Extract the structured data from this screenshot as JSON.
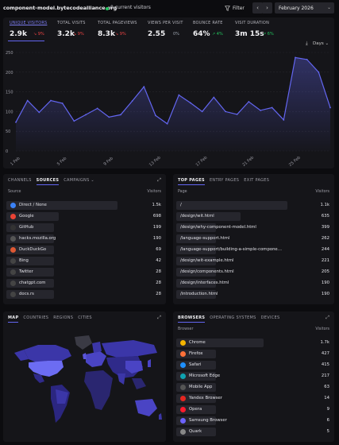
{
  "topbar": {
    "site": "component-model.bytecodealliance.org",
    "current_visitors": "0 current visitors",
    "filter_label": "Filter",
    "prev_label": "‹",
    "next_label": "›",
    "date_range": "February 2026"
  },
  "stats": [
    {
      "label": "UNIQUE VISITORS",
      "value": "2.9k",
      "delta": "9%",
      "dir": "down"
    },
    {
      "label": "TOTAL VISITS",
      "value": "3.2k",
      "delta": "9%",
      "dir": "down"
    },
    {
      "label": "TOTAL PAGEVIEWS",
      "value": "8.3k",
      "delta": "9%",
      "dir": "down"
    },
    {
      "label": "VIEWS PER VISIT",
      "value": "2.55",
      "delta": "0%",
      "dir": "flat"
    },
    {
      "label": "BOUNCE RATE",
      "value": "64%",
      "delta": "4%",
      "dir": "up"
    },
    {
      "label": "VISIT DURATION",
      "value": "3m 15s",
      "delta": "6%",
      "dir": "up"
    }
  ],
  "interval": "Days",
  "chart_data": {
    "type": "area",
    "x": [
      "1 Feb",
      "2 Feb",
      "3 Feb",
      "4 Feb",
      "5 Feb",
      "6 Feb",
      "7 Feb",
      "8 Feb",
      "9 Feb",
      "10 Feb",
      "11 Feb",
      "12 Feb",
      "13 Feb",
      "14 Feb",
      "15 Feb",
      "16 Feb",
      "17 Feb",
      "18 Feb",
      "19 Feb",
      "20 Feb",
      "21 Feb",
      "22 Feb",
      "23 Feb",
      "24 Feb",
      "25 Feb",
      "26 Feb",
      "27 Feb",
      "28 Feb"
    ],
    "values": [
      73,
      128,
      98,
      128,
      121,
      76,
      92,
      108,
      86,
      92,
      127,
      163,
      90,
      69,
      142,
      122,
      100,
      136,
      100,
      93,
      125,
      103,
      110,
      79,
      237,
      232,
      200,
      110
    ],
    "xticks": [
      "1 Feb",
      "5 Feb",
      "9 Feb",
      "13 Feb",
      "17 Feb",
      "21 Feb",
      "25 Feb"
    ],
    "yticks": [
      0,
      50,
      100,
      150,
      200,
      250
    ],
    "ylim": [
      0,
      250
    ],
    "grid": true,
    "color": "#6366f1"
  },
  "sources": {
    "tabs": [
      "CHANNELS",
      "SOURCES",
      "CAMPAIGNS"
    ],
    "active": "SOURCES",
    "col_left": "Source",
    "col_right": "Visitors",
    "rows": [
      {
        "name": "Direct / None",
        "count": "1.5k",
        "icon": "direct-icon",
        "color": "#3b82f6",
        "frac": 1.0
      },
      {
        "name": "Google",
        "count": "698",
        "icon": "google-icon",
        "color": "#ea4335",
        "frac": 0.47
      },
      {
        "name": "GitHub",
        "count": "199",
        "icon": "github-icon",
        "color": "#333",
        "frac": 0.14
      },
      {
        "name": "hacks.mozilla.org",
        "count": "190",
        "icon": "mozilla-icon",
        "color": "#555",
        "frac": 0.13
      },
      {
        "name": "DuckDuckGo",
        "count": "69",
        "icon": "duckduckgo-icon",
        "color": "#de5833",
        "frac": 0.05
      },
      {
        "name": "Bing",
        "count": "42",
        "icon": "bing-icon",
        "color": "#444",
        "frac": 0.03
      },
      {
        "name": "Twitter",
        "count": "28",
        "icon": "twitter-icon",
        "color": "#444",
        "frac": 0.02
      },
      {
        "name": "chatgpt.com",
        "count": "28",
        "icon": "chatgpt-icon",
        "color": "#444",
        "frac": 0.02
      },
      {
        "name": "docs.rs",
        "count": "28",
        "icon": "docsrs-icon",
        "color": "#444",
        "frac": 0.02
      }
    ]
  },
  "pages": {
    "tabs": [
      "TOP PAGES",
      "ENTRY PAGES",
      "EXIT PAGES"
    ],
    "active": "TOP PAGES",
    "col_left": "Page",
    "col_right": "Visitors",
    "rows": [
      {
        "name": "/",
        "count": "1.1k",
        "frac": 1.0
      },
      {
        "name": "/design/wit.html",
        "count": "635",
        "frac": 0.58
      },
      {
        "name": "/design/why-component-model.html",
        "count": "399",
        "frac": 0.36
      },
      {
        "name": "/language-support.html",
        "count": "262",
        "frac": 0.24
      },
      {
        "name": "/language-support/building-a-simple-compone…",
        "count": "244",
        "frac": 0.22
      },
      {
        "name": "/design/wit-example.html",
        "count": "221",
        "frac": 0.2
      },
      {
        "name": "/design/components.html",
        "count": "205",
        "frac": 0.19
      },
      {
        "name": "/design/interfaces.html",
        "count": "190",
        "frac": 0.17
      },
      {
        "name": "/introduction.html",
        "count": "190",
        "frac": 0.17
      }
    ]
  },
  "map": {
    "tabs": [
      "MAP",
      "COUNTRIES",
      "REGIONS",
      "CITIES"
    ],
    "active": "MAP"
  },
  "browsers": {
    "tabs": [
      "BROWSERS",
      "OPERATING SYSTEMS",
      "DEVICES"
    ],
    "active": "BROWSERS",
    "col_left": "Browser",
    "col_right": "Visitors",
    "rows": [
      {
        "name": "Chrome",
        "count": "1.7k",
        "icon": "chrome-icon",
        "color": "#f4b400",
        "frac": 1.0
      },
      {
        "name": "Firefox",
        "count": "427",
        "icon": "firefox-icon",
        "color": "#ff7139",
        "frac": 0.25
      },
      {
        "name": "Safari",
        "count": "415",
        "icon": "safari-icon",
        "color": "#1e90ff",
        "frac": 0.24
      },
      {
        "name": "Microsoft Edge",
        "count": "217",
        "icon": "edge-icon",
        "color": "#0fa3b1",
        "frac": 0.13
      },
      {
        "name": "Mobile App",
        "count": "63",
        "icon": "mobile-app-icon",
        "color": "#555",
        "frac": 0.04
      },
      {
        "name": "Yandex Browser",
        "count": "14",
        "icon": "yandex-icon",
        "color": "#e52620",
        "frac": 0.01
      },
      {
        "name": "Opera",
        "count": "9",
        "icon": "opera-icon",
        "color": "#ff1b2d",
        "frac": 0.01
      },
      {
        "name": "Samsung Browser",
        "count": "6",
        "icon": "samsung-icon",
        "color": "#6c63ff",
        "frac": 0.01
      },
      {
        "name": "Quark",
        "count": "5",
        "icon": "quark-icon",
        "color": "#888",
        "frac": 0.01
      }
    ]
  }
}
